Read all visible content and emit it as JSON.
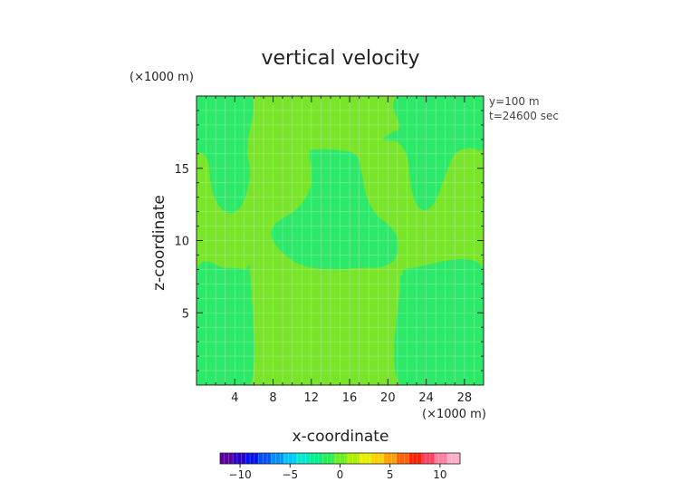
{
  "chart_data": {
    "type": "heatmap",
    "title": "vertical velocity",
    "xlabel": "x-coordinate",
    "ylabel": "z-coordinate",
    "x_unit": "(×1000 m)",
    "y_unit": "(×1000 m)",
    "annotations": [
      "y=100 m",
      "t=24600 sec"
    ],
    "xlim": [
      0,
      30
    ],
    "ylim": [
      0,
      20
    ],
    "x_ticks": [
      4,
      8,
      12,
      16,
      20,
      24,
      28
    ],
    "y_ticks": [
      5,
      10,
      15
    ],
    "grid": true,
    "colors": {
      "background_field": "#78e42a",
      "low_region": "#2ee86a",
      "grid": "#ffffff"
    },
    "regions": [
      {
        "name": "left-plume",
        "polygon": [
          [
            0,
            16.3
          ],
          [
            0.5,
            16.1
          ],
          [
            1.2,
            15.5
          ],
          [
            1.5,
            14.0
          ],
          [
            2.0,
            12.8
          ],
          [
            3.0,
            12.0
          ],
          [
            4.3,
            12.1
          ],
          [
            5.2,
            13.2
          ],
          [
            5.6,
            14.8
          ],
          [
            5.3,
            16.0
          ],
          [
            5.4,
            17.0
          ],
          [
            5.6,
            20.0
          ],
          [
            0,
            20.0
          ]
        ]
      },
      {
        "name": "right-plume",
        "polygon": [
          [
            21.2,
            20.0
          ],
          [
            21.2,
            17.9
          ],
          [
            20.5,
            17.5
          ],
          [
            19.5,
            17.0
          ],
          [
            21.0,
            16.8
          ],
          [
            22.0,
            15.8
          ],
          [
            22.4,
            13.8
          ],
          [
            23.0,
            12.5
          ],
          [
            24.0,
            12.1
          ],
          [
            25.0,
            12.8
          ],
          [
            26.0,
            14.5
          ],
          [
            27.0,
            16.0
          ],
          [
            28.5,
            16.4
          ],
          [
            30.0,
            16.5
          ],
          [
            30.0,
            20.0
          ]
        ]
      },
      {
        "name": "center-bowl",
        "polygon": [
          [
            11.8,
            16.1
          ],
          [
            12.5,
            16.3
          ],
          [
            15.5,
            16.2
          ],
          [
            16.8,
            15.8
          ],
          [
            17.3,
            14.5
          ],
          [
            17.8,
            13.0
          ],
          [
            18.8,
            11.8
          ],
          [
            20.2,
            11.0
          ],
          [
            21.0,
            10.1
          ],
          [
            20.8,
            8.8
          ],
          [
            19.5,
            8.2
          ],
          [
            17.0,
            8.1
          ],
          [
            14.0,
            8.0
          ],
          [
            11.0,
            8.3
          ],
          [
            8.8,
            9.3
          ],
          [
            7.8,
            10.4
          ],
          [
            8.5,
            11.3
          ],
          [
            10.5,
            12.2
          ],
          [
            11.8,
            13.5
          ],
          [
            12.0,
            14.8
          ]
        ]
      },
      {
        "name": "left-lower",
        "polygon": [
          [
            0,
            0
          ],
          [
            5.6,
            0
          ],
          [
            5.6,
            7.6
          ],
          [
            5.0,
            8.0
          ],
          [
            3.0,
            8.1
          ],
          [
            0,
            7.9
          ]
        ]
      },
      {
        "name": "right-lower",
        "polygon": [
          [
            21.3,
            0
          ],
          [
            30.0,
            0
          ],
          [
            30.0,
            8.1
          ],
          [
            22.5,
            8.1
          ],
          [
            21.5,
            7.6
          ],
          [
            21.3,
            7.0
          ]
        ]
      }
    ],
    "colorbar": {
      "ticks": [
        -10,
        -5,
        0,
        5,
        10
      ],
      "range": [
        -12,
        12
      ],
      "colors": [
        "#5a00a0",
        "#2a00c8",
        "#0010f0",
        "#0050ff",
        "#0090ff",
        "#00c8ff",
        "#00e8d0",
        "#00f090",
        "#22ee55",
        "#66ee22",
        "#aaf000",
        "#e8f000",
        "#ffd000",
        "#ffa000",
        "#ff6000",
        "#ff2000",
        "#ff4060",
        "#ff80a0",
        "#ffb0c8"
      ]
    }
  }
}
